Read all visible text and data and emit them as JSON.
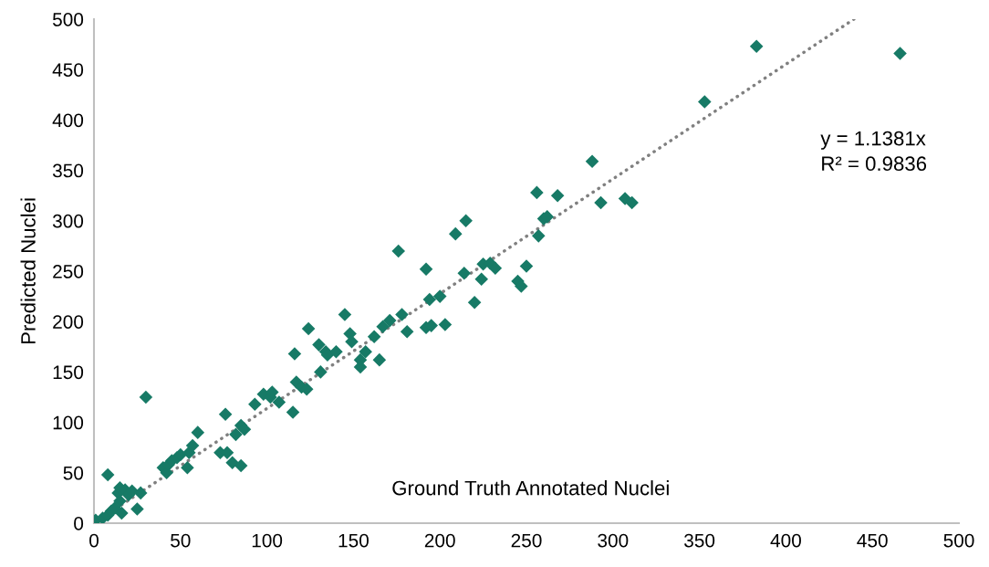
{
  "chart_data": {
    "type": "scatter",
    "xlabel": "Ground Truth Annotated Nuclei",
    "ylabel": "Predicted Nuclei",
    "xlim": [
      0,
      500
    ],
    "ylim": [
      0,
      500
    ],
    "xticks": [
      0,
      50,
      100,
      150,
      200,
      250,
      300,
      350,
      400,
      450,
      500
    ],
    "yticks": [
      0,
      50,
      100,
      150,
      200,
      250,
      300,
      350,
      400,
      450,
      500
    ],
    "grid": false,
    "legend": false,
    "marker": "diamond",
    "annotations": [
      "y = 1.1381x",
      "R² = 0.9836"
    ],
    "series": [
      {
        "color": "#177a66",
        "x": [
          1,
          5,
          8,
          10,
          12,
          8,
          14,
          15,
          15,
          16,
          18,
          20,
          22,
          25,
          27,
          30,
          40,
          42,
          43,
          45,
          48,
          50,
          54,
          55,
          57,
          60,
          73,
          76,
          77,
          80,
          82,
          85,
          85,
          87,
          93,
          98,
          102,
          103,
          107,
          115,
          116,
          117,
          120,
          123,
          124,
          130,
          131,
          134,
          135,
          140,
          145,
          148,
          149,
          154,
          154,
          157,
          162,
          165,
          167,
          171,
          176,
          178,
          181,
          192,
          192,
          194,
          195,
          200,
          203,
          209,
          214,
          215,
          220,
          224,
          225,
          229,
          232,
          245,
          247,
          250,
          256,
          257,
          260,
          262,
          268,
          288,
          293,
          307,
          311,
          353,
          383,
          466
        ],
        "values": [
          3,
          5,
          8,
          12,
          15,
          48,
          30,
          22,
          35,
          10,
          33,
          28,
          32,
          14,
          30,
          125,
          55,
          50,
          58,
          62,
          65,
          68,
          55,
          70,
          77,
          90,
          70,
          108,
          70,
          60,
          88,
          57,
          97,
          93,
          118,
          128,
          125,
          130,
          120,
          110,
          168,
          140,
          135,
          133,
          193,
          177,
          150,
          170,
          167,
          170,
          207,
          188,
          180,
          162,
          155,
          170,
          185,
          162,
          195,
          201,
          270,
          207,
          190,
          252,
          194,
          222,
          196,
          225,
          197,
          287,
          248,
          300,
          219,
          242,
          257,
          258,
          253,
          240,
          235,
          255,
          328,
          285,
          302,
          304,
          325,
          359,
          318,
          322,
          318,
          418,
          473,
          466
        ]
      },
      {
        "type": "line",
        "color": "#808080",
        "line_style": "dotted",
        "marker": "none",
        "x": [
          0,
          439.3
        ],
        "values": [
          0,
          500
        ]
      }
    ]
  }
}
